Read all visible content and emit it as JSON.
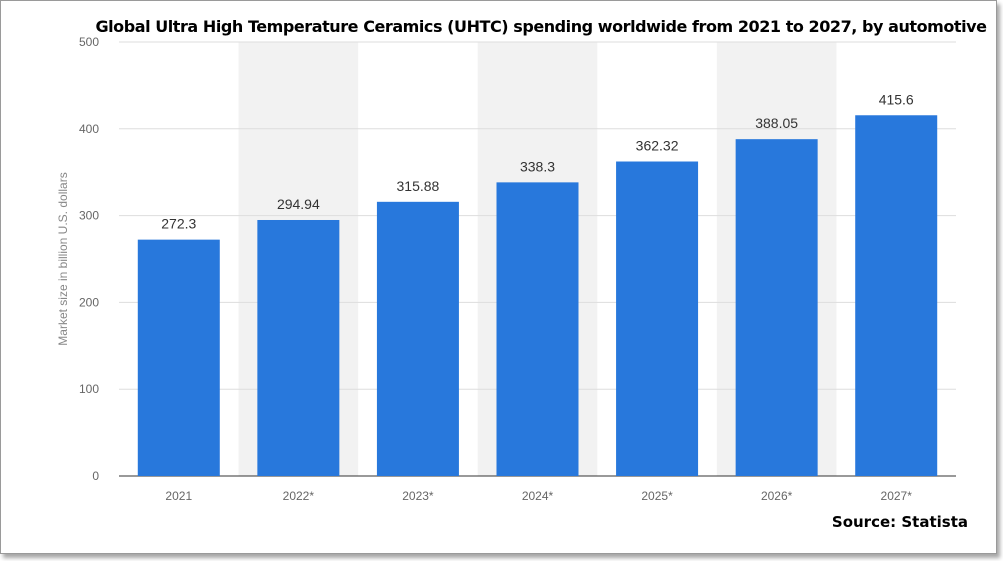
{
  "chart_data": {
    "type": "bar",
    "title": "Global Ultra High Temperature Ceramics (UHTC) spending worldwide from 2021 to 2027, by automotive",
    "ylabel": "Market size in billion U.S. dollars",
    "xlabel": "",
    "categories": [
      "2021",
      "2022*",
      "2023*",
      "2024*",
      "2025*",
      "2026*",
      "2027*"
    ],
    "values": [
      272.3,
      294.94,
      315.88,
      338.3,
      362.32,
      388.05,
      415.6
    ],
    "value_labels": [
      "272.3",
      "294.94",
      "315.88",
      "338.3",
      "362.32",
      "388.05",
      "415.6"
    ],
    "ylim": [
      0,
      500
    ],
    "yticks": [
      "0",
      "100",
      "200",
      "300",
      "400",
      "500"
    ],
    "grid": true,
    "colors": {
      "bar": "#2878dc",
      "band": "#f2f2f2",
      "grid": "#dddddd"
    }
  },
  "source": "Source: Statista"
}
